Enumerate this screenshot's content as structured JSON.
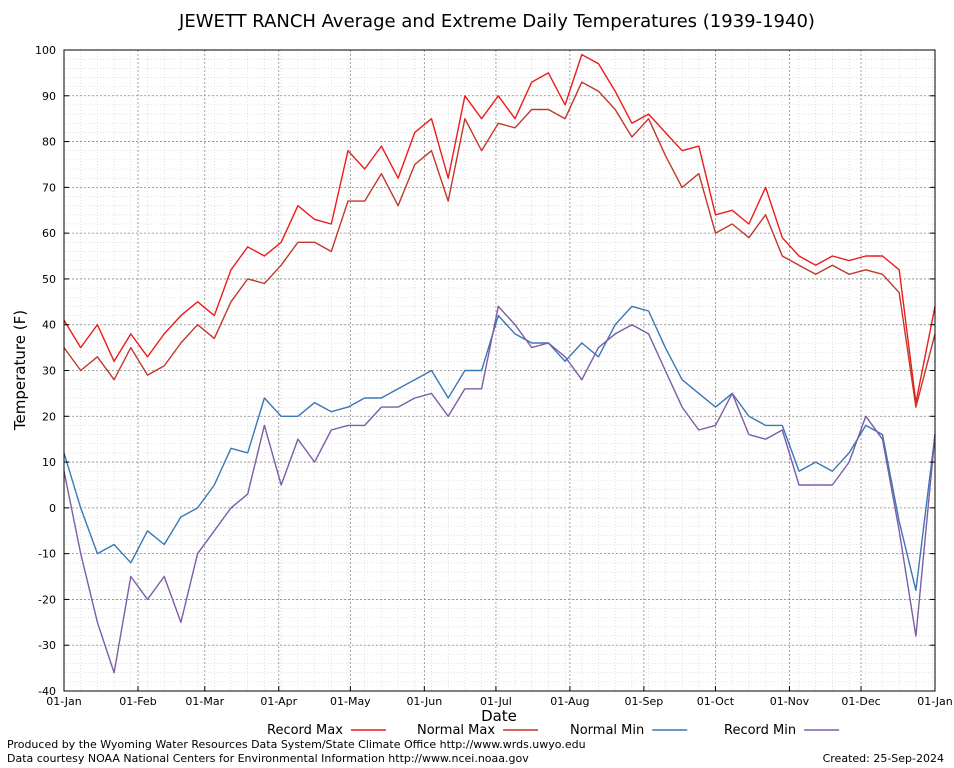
{
  "chart_data": {
    "type": "line",
    "title": "JEWETT RANCH Average and Extreme Daily Temperatures (1939-1940)",
    "xlabel": "Date",
    "ylabel": "Temperature (F)",
    "ylim": [
      -40,
      100
    ],
    "yticks": [
      100,
      90,
      80,
      70,
      60,
      50,
      40,
      30,
      20,
      10,
      0,
      -10,
      -20,
      -30,
      -40
    ],
    "xticks": [
      "01-Jan",
      "01-Feb",
      "01-Mar",
      "01-Apr",
      "01-May",
      "01-Jun",
      "01-Jul",
      "01-Aug",
      "01-Sep",
      "01-Oct",
      "01-Nov",
      "01-Dec",
      "01-Jan"
    ],
    "xtick_days": [
      1,
      32,
      60,
      91,
      121,
      152,
      182,
      213,
      244,
      274,
      305,
      335,
      366
    ],
    "grid": true,
    "legend_position": "bottom",
    "series": [
      {
        "name": "Record Max",
        "color": "#ee1c1c",
        "x": [
          1,
          8,
          15,
          22,
          29,
          36,
          43,
          50,
          57,
          64,
          71,
          78,
          85,
          92,
          99,
          106,
          113,
          120,
          127,
          134,
          141,
          148,
          155,
          162,
          169,
          176,
          183,
          190,
          197,
          204,
          211,
          218,
          225,
          232,
          239,
          246,
          253,
          260,
          267,
          274,
          281,
          288,
          295,
          302,
          309,
          316,
          323,
          330,
          337,
          344,
          351,
          358,
          366
        ],
        "values": [
          41,
          35,
          40,
          32,
          38,
          33,
          38,
          42,
          45,
          42,
          52,
          57,
          55,
          58,
          66,
          63,
          62,
          78,
          74,
          79,
          72,
          82,
          85,
          72,
          90,
          85,
          90,
          85,
          93,
          95,
          88,
          99,
          97,
          91,
          84,
          86,
          82,
          78,
          79,
          64,
          65,
          62,
          70,
          59,
          55,
          53,
          55,
          54,
          55,
          55,
          52,
          23,
          44
        ]
      },
      {
        "name": "Normal Max",
        "color": "#c0392b",
        "x": [
          1,
          8,
          15,
          22,
          29,
          36,
          43,
          50,
          57,
          64,
          71,
          78,
          85,
          92,
          99,
          106,
          113,
          120,
          127,
          134,
          141,
          148,
          155,
          162,
          169,
          176,
          183,
          190,
          197,
          204,
          211,
          218,
          225,
          232,
          239,
          246,
          253,
          260,
          267,
          274,
          281,
          288,
          295,
          302,
          309,
          316,
          323,
          330,
          337,
          344,
          351,
          358,
          366
        ],
        "values": [
          35,
          30,
          33,
          28,
          35,
          29,
          31,
          36,
          40,
          37,
          45,
          50,
          49,
          53,
          58,
          58,
          56,
          67,
          67,
          73,
          66,
          75,
          78,
          67,
          85,
          78,
          84,
          83,
          87,
          87,
          85,
          93,
          91,
          87,
          81,
          85,
          77,
          70,
          73,
          60,
          62,
          59,
          64,
          55,
          53,
          51,
          53,
          51,
          52,
          51,
          47,
          22,
          38
        ]
      },
      {
        "name": "Normal Min",
        "color": "#3a78b5",
        "x": [
          1,
          8,
          15,
          22,
          29,
          36,
          43,
          50,
          57,
          64,
          71,
          78,
          85,
          92,
          99,
          106,
          113,
          120,
          127,
          134,
          141,
          148,
          155,
          162,
          169,
          176,
          183,
          190,
          197,
          204,
          211,
          218,
          225,
          232,
          239,
          246,
          253,
          260,
          267,
          274,
          281,
          288,
          295,
          302,
          309,
          316,
          323,
          330,
          337,
          344,
          351,
          358,
          366
        ],
        "values": [
          12,
          0,
          -10,
          -8,
          -12,
          -5,
          -8,
          -2,
          0,
          5,
          13,
          12,
          24,
          20,
          20,
          23,
          21,
          22,
          24,
          24,
          26,
          28,
          30,
          24,
          30,
          30,
          42,
          38,
          36,
          36,
          32,
          36,
          33,
          40,
          44,
          43,
          35,
          28,
          25,
          22,
          25,
          20,
          18,
          18,
          8,
          10,
          8,
          12,
          18,
          16,
          -3,
          -18,
          16
        ]
      },
      {
        "name": "Record Min",
        "color": "#7b5ea7",
        "x": [
          1,
          8,
          15,
          22,
          29,
          36,
          43,
          50,
          57,
          64,
          71,
          78,
          85,
          92,
          99,
          106,
          113,
          120,
          127,
          134,
          141,
          148,
          155,
          162,
          169,
          176,
          183,
          190,
          197,
          204,
          211,
          218,
          225,
          232,
          239,
          246,
          253,
          260,
          267,
          274,
          281,
          288,
          295,
          302,
          309,
          316,
          323,
          330,
          337,
          344,
          351,
          358,
          366
        ],
        "values": [
          8,
          -10,
          -25,
          -36,
          -15,
          -20,
          -15,
          -25,
          -10,
          -5,
          0,
          3,
          18,
          5,
          15,
          10,
          17,
          18,
          18,
          22,
          22,
          24,
          25,
          20,
          26,
          26,
          44,
          40,
          35,
          36,
          33,
          28,
          35,
          38,
          40,
          38,
          30,
          22,
          17,
          18,
          25,
          16,
          15,
          17,
          5,
          5,
          5,
          10,
          20,
          15,
          -5,
          -28,
          16
        ]
      }
    ]
  },
  "legend_items": [
    {
      "name": "Record Max",
      "color": "#ee1c1c"
    },
    {
      "name": "Normal Max",
      "color": "#c0392b"
    },
    {
      "name": "Normal Min",
      "color": "#3a78b5"
    },
    {
      "name": "Record Min",
      "color": "#7b5ea7"
    }
  ],
  "footer": {
    "credit_line1": "Produced by the Wyoming Water Resources Data System/State Climate Office http://www.wrds.uwyo.edu",
    "credit_line2": "Data courtesy NOAA National Centers for Environmental Information http://www.ncei.noaa.gov",
    "created": "Created:  25-Sep-2024"
  }
}
